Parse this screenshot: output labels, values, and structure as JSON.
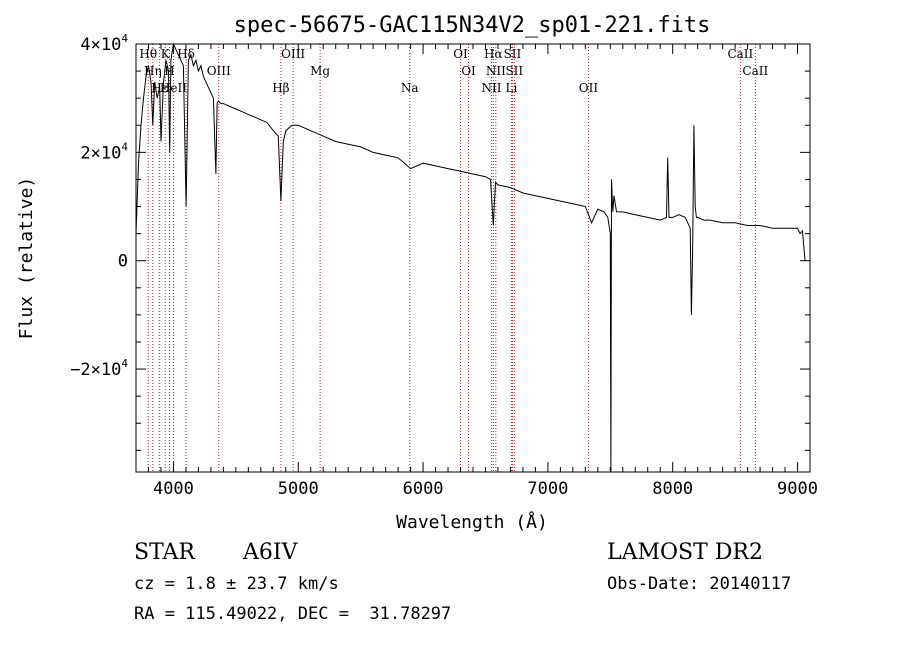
{
  "chart_data": {
    "type": "line",
    "title": "spec-56675-GAC115N34V2_sp01-221.fits",
    "xlabel": "Wavelength (Å)",
    "ylabel": "Flux (relative)",
    "xlim": [
      3700,
      9100
    ],
    "ylim": [
      -39000,
      40000
    ],
    "xticks": [
      4000,
      5000,
      6000,
      7000,
      8000,
      9000
    ],
    "yticks": [
      {
        "value": 40000,
        "label": "4×10^4"
      },
      {
        "value": 20000,
        "label": "2×10^4"
      },
      {
        "value": 0,
        "label": "0"
      },
      {
        "value": -20000,
        "label": "−2×10^4"
      }
    ],
    "series": [
      {
        "x": [
          3700,
          3720,
          3740,
          3760,
          3780,
          3800,
          3820,
          3835,
          3850,
          3870,
          3890,
          3900,
          3920,
          3940,
          3960,
          3970,
          3980,
          4000,
          4020,
          4040,
          4060,
          4080,
          4101,
          4120,
          4140,
          4160,
          4180,
          4200,
          4220,
          4240,
          4260,
          4280,
          4300,
          4320,
          4340,
          4350,
          4360,
          4380,
          4400,
          4450,
          4500,
          4550,
          4600,
          4650,
          4700,
          4750,
          4800,
          4840,
          4861,
          4880,
          4900,
          4950,
          5000,
          5100,
          5200,
          5300,
          5400,
          5500,
          5600,
          5700,
          5800,
          5900,
          6000,
          6100,
          6200,
          6300,
          6400,
          6500,
          6540,
          6563,
          6580,
          6600,
          6700,
          6800,
          6900,
          7000,
          7100,
          7200,
          7300,
          7350,
          7400,
          7450,
          7480,
          7500,
          7505,
          7510,
          7520,
          7530,
          7550,
          7600,
          7700,
          7800,
          7900,
          7950,
          7960,
          7970,
          8000,
          8050,
          8100,
          8140,
          8150,
          8160,
          8170,
          8180,
          8190,
          8200,
          8250,
          8300,
          8400,
          8500,
          8600,
          8700,
          8800,
          8900,
          9000,
          9020,
          9040,
          9060
        ],
        "values": [
          5000,
          18000,
          25000,
          30000,
          34000,
          36000,
          33000,
          25000,
          33000,
          30000,
          32000,
          22000,
          33000,
          37000,
          35000,
          20000,
          37000,
          40000,
          39000,
          38000,
          37000,
          36000,
          10000,
          37000,
          38000,
          36000,
          37000,
          35000,
          36000,
          34000,
          33000,
          32000,
          31000,
          30000,
          16000,
          29000,
          29500,
          29000,
          29000,
          28500,
          28000,
          27500,
          27000,
          26500,
          26000,
          25500,
          24000,
          23000,
          11000,
          22000,
          24000,
          25000,
          25000,
          24000,
          23000,
          22000,
          21500,
          21000,
          20000,
          19500,
          19000,
          17000,
          18000,
          17500,
          17000,
          16500,
          16000,
          15500,
          15000,
          6500,
          14500,
          14000,
          13500,
          12500,
          12000,
          11500,
          11000,
          10500,
          10000,
          7000,
          9500,
          9000,
          8000,
          5000,
          -39000,
          15000,
          9000,
          12000,
          9000,
          9000,
          8500,
          8000,
          7500,
          8000,
          19000,
          8000,
          8000,
          8500,
          8000,
          6000,
          -10000,
          3000,
          25000,
          10000,
          8000,
          8000,
          7500,
          7500,
          7000,
          7000,
          6500,
          6500,
          6000,
          6000,
          6000,
          5000,
          5500,
          0
        ]
      }
    ],
    "lines": [
      {
        "x": 3798,
        "label": "Hθ"
      },
      {
        "x": 3835,
        "label": "Hη"
      },
      {
        "x": 3889,
        "label": "Hε"
      },
      {
        "x": 3934,
        "label": "K"
      },
      {
        "x": 3968,
        "label": "H"
      },
      {
        "x": 4000,
        "label": "HeII"
      },
      {
        "x": 4101,
        "label": "Hδ"
      },
      {
        "x": 4363,
        "label": "OIII"
      },
      {
        "x": 4861,
        "label": "Hβ"
      },
      {
        "x": 4959,
        "label": "OIII"
      },
      {
        "x": 5175,
        "label": "Mg"
      },
      {
        "x": 5893,
        "label": "Na"
      },
      {
        "x": 6300,
        "label": "OI"
      },
      {
        "x": 6364,
        "label": "OI"
      },
      {
        "x": 6548,
        "label": "NII"
      },
      {
        "x": 6563,
        "label": "Hα"
      },
      {
        "x": 6583,
        "label": "NII"
      },
      {
        "x": 6708,
        "label": "Li"
      },
      {
        "x": 6716,
        "label": "SII"
      },
      {
        "x": 6731,
        "label": "SII"
      },
      {
        "x": 7325,
        "label": "OII"
      },
      {
        "x": 8542,
        "label": "CaII"
      },
      {
        "x": 8662,
        "label": "CaII"
      }
    ]
  },
  "info": {
    "class_label": "STAR",
    "subclass": "A6IV",
    "survey": "LAMOST DR2",
    "cz": "cz = 1.8 ± 23.7 km/s",
    "obs_date": "Obs-Date: 20140117",
    "radec": "RA = 115.49022, DEC =  31.78297"
  },
  "colors": {
    "spectrum": "#000000",
    "line_marker": "#b22222",
    "axes": "#000000"
  }
}
